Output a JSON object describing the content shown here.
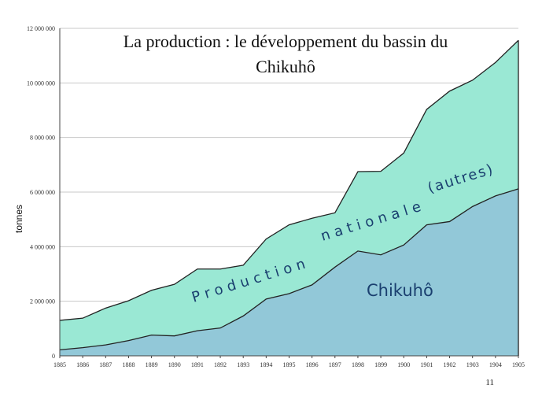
{
  "chart_data": {
    "type": "area",
    "title_line1": "La production : le développement du bassin du",
    "title_line2": "Chikuhô",
    "ylabel": "tonnes",
    "xlabel": "",
    "ylim": [
      0,
      12000000
    ],
    "yticks": [
      {
        "value": 0,
        "label": "0"
      },
      {
        "value": 2000000,
        "label": "2 000 000"
      },
      {
        "value": 4000000,
        "label": "4 000 000"
      },
      {
        "value": 6000000,
        "label": "6 000 000"
      },
      {
        "value": 8000000,
        "label": "8 000 000"
      },
      {
        "value": 10000000,
        "label": "10 000 000"
      },
      {
        "value": 12000000,
        "label": "12 000 000"
      }
    ],
    "x": [
      "1885",
      "1886",
      "1887",
      "1888",
      "1889",
      "1890",
      "1891",
      "1892",
      "1893",
      "1894",
      "1895",
      "1896",
      "1897",
      "1898",
      "1899",
      "1900",
      "1901",
      "1902",
      "1903",
      "1904",
      "1905"
    ],
    "grid": true,
    "series": [
      {
        "key": "chikuho",
        "color": "#92c8d8",
        "values": [
          220000,
          300000,
          400000,
          560000,
          760000,
          730000,
          920000,
          1020000,
          1460000,
          2080000,
          2280000,
          2600000,
          3250000,
          3840000,
          3700000,
          4060000,
          4800000,
          4920000,
          5470000,
          5860000,
          6120000
        ]
      },
      {
        "key": "total",
        "color": "#9ae8d4",
        "values": [
          1300000,
          1380000,
          1750000,
          2020000,
          2400000,
          2620000,
          3180000,
          3180000,
          3320000,
          4280000,
          4800000,
          5040000,
          5240000,
          6750000,
          6760000,
          7430000,
          9030000,
          9700000,
          10100000,
          10750000,
          11560000
        ]
      }
    ],
    "annotations": {
      "national": "Production nationale (autres)",
      "national_parts": [
        "Production",
        "nationale",
        "(autres)"
      ],
      "chikuho": "Chikuhô"
    }
  },
  "page_number": "11"
}
